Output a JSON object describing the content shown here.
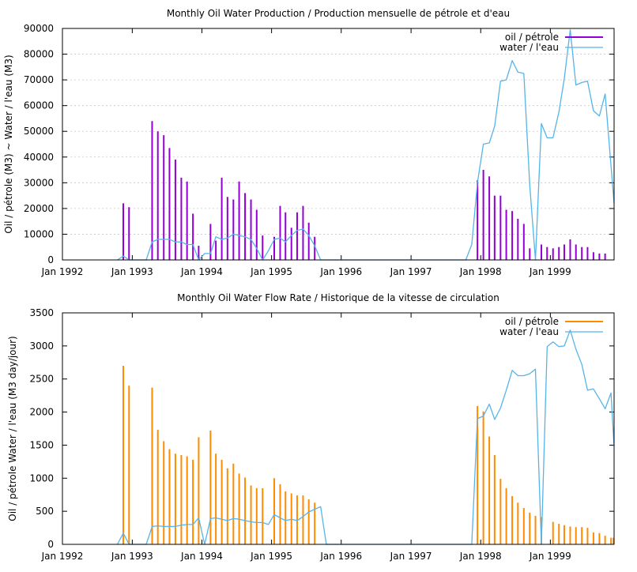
{
  "chart_data": [
    {
      "type": "bar",
      "title": "Monthly Oil  Water Production / Production mensuelle de pétrole et d'eau",
      "xlabel": "",
      "ylabel": "Oil / pétrole (M3) ~  Water / l'eau (M3)",
      "xlim": [
        "1992-01-01",
        "1999-12-01"
      ],
      "ylim": [
        0,
        90000
      ],
      "x_ticks": [
        "Jan 1992",
        "Jan 1993",
        "Jan 1994",
        "Jan 1995",
        "Jan 1996",
        "Jan 1997",
        "Jan 1998",
        "Jan 1999"
      ],
      "y_ticks": [
        "0",
        "10000",
        "20000",
        "30000",
        "40000",
        "50000",
        "60000",
        "70000",
        "80000",
        "90000"
      ],
      "grid": true,
      "legend_position": "top-right",
      "series": [
        {
          "name": "oil / pétrole",
          "kind": "bar",
          "color": "#9400d3",
          "points": [
            [
              "1992-11-15",
              22000
            ],
            [
              "1992-12-15",
              20500
            ],
            [
              "1993-04-15",
              54000
            ],
            [
              "1993-05-15",
              50000
            ],
            [
              "1993-06-15",
              48500
            ],
            [
              "1993-07-15",
              43500
            ],
            [
              "1993-08-15",
              39000
            ],
            [
              "1993-09-15",
              32000
            ],
            [
              "1993-10-15",
              30500
            ],
            [
              "1993-11-15",
              18000
            ],
            [
              "1993-12-15",
              5500
            ],
            [
              "1994-02-15",
              14000
            ],
            [
              "1994-03-15",
              7500
            ],
            [
              "1994-04-15",
              32000
            ],
            [
              "1994-05-15",
              24500
            ],
            [
              "1994-06-15",
              23500
            ],
            [
              "1994-07-15",
              30500
            ],
            [
              "1994-08-15",
              26000
            ],
            [
              "1994-09-15",
              23500
            ],
            [
              "1994-10-15",
              19500
            ],
            [
              "1994-11-15",
              9500
            ],
            [
              "1995-01-15",
              9000
            ],
            [
              "1995-02-15",
              21000
            ],
            [
              "1995-03-15",
              18500
            ],
            [
              "1995-04-15",
              12500
            ],
            [
              "1995-05-15",
              18500
            ],
            [
              "1995-06-15",
              21000
            ],
            [
              "1995-07-15",
              14500
            ],
            [
              "1995-08-15",
              9000
            ],
            [
              "1997-12-15",
              31000
            ],
            [
              "1998-01-15",
              35000
            ],
            [
              "1998-02-15",
              32500
            ],
            [
              "1998-03-15",
              25000
            ],
            [
              "1998-04-15",
              25000
            ],
            [
              "1998-05-15",
              19500
            ],
            [
              "1998-06-15",
              19000
            ],
            [
              "1998-07-15",
              16000
            ],
            [
              "1998-08-15",
              14000
            ],
            [
              "1998-09-15",
              4500
            ],
            [
              "1998-11-15",
              6000
            ],
            [
              "1998-12-15",
              5000
            ],
            [
              "1999-01-15",
              4500
            ],
            [
              "1999-02-15",
              5000
            ],
            [
              "1999-03-15",
              6000
            ],
            [
              "1999-04-15",
              8000
            ],
            [
              "1999-05-15",
              6000
            ],
            [
              "1999-06-15",
              5000
            ],
            [
              "1999-07-15",
              5000
            ],
            [
              "1999-08-15",
              3000
            ],
            [
              "1999-09-15",
              2500
            ],
            [
              "1999-10-15",
              2500
            ]
          ]
        },
        {
          "name": "water / l'eau",
          "kind": "line",
          "color": "#56b4e9",
          "points": [
            [
              "1992-10-15",
              0
            ],
            [
              "1992-11-15",
              1500
            ],
            [
              "1992-12-15",
              0
            ],
            [
              "1993-03-15",
              0
            ],
            [
              "1993-04-15",
              7000
            ],
            [
              "1993-05-15",
              8000
            ],
            [
              "1993-06-15",
              8000
            ],
            [
              "1993-07-15",
              8000
            ],
            [
              "1993-08-15",
              7000
            ],
            [
              "1993-09-15",
              7000
            ],
            [
              "1993-10-15",
              6000
            ],
            [
              "1993-11-15",
              6000
            ],
            [
              "1993-12-15",
              0
            ],
            [
              "1994-01-15",
              2500
            ],
            [
              "1994-02-15",
              2500
            ],
            [
              "1994-03-15",
              9000
            ],
            [
              "1994-04-15",
              8000
            ],
            [
              "1994-05-15",
              8500
            ],
            [
              "1994-06-15",
              10000
            ],
            [
              "1994-07-15",
              9500
            ],
            [
              "1994-08-15",
              9000
            ],
            [
              "1994-09-15",
              8000
            ],
            [
              "1994-10-15",
              4500
            ],
            [
              "1994-11-15",
              0
            ],
            [
              "1994-12-15",
              3500
            ],
            [
              "1995-01-15",
              8000
            ],
            [
              "1995-02-15",
              8500
            ],
            [
              "1995-03-15",
              7000
            ],
            [
              "1995-04-15",
              9500
            ],
            [
              "1995-05-15",
              11500
            ],
            [
              "1995-06-15",
              12000
            ],
            [
              "1995-07-15",
              9500
            ],
            [
              "1995-08-15",
              5500
            ],
            [
              "1995-09-15",
              0
            ],
            [
              "1997-10-15",
              0
            ],
            [
              "1997-11-15",
              6000
            ],
            [
              "1997-12-15",
              30000
            ],
            [
              "1998-01-15",
              45000
            ],
            [
              "1998-02-15",
              45500
            ],
            [
              "1998-03-15",
              52000
            ],
            [
              "1998-04-15",
              69500
            ],
            [
              "1998-05-15",
              70000
            ],
            [
              "1998-06-15",
              77500
            ],
            [
              "1998-07-15",
              73000
            ],
            [
              "1998-08-15",
              72500
            ],
            [
              "1998-09-15",
              29000
            ],
            [
              "1998-10-15",
              0
            ],
            [
              "1998-11-15",
              53000
            ],
            [
              "1998-12-15",
              47500
            ],
            [
              "1999-01-15",
              47500
            ],
            [
              "1999-02-15",
              57500
            ],
            [
              "1999-03-15",
              70500
            ],
            [
              "1999-04-15",
              89500
            ],
            [
              "1999-05-15",
              68000
            ],
            [
              "1999-06-15",
              69000
            ],
            [
              "1999-07-15",
              69500
            ],
            [
              "1999-08-15",
              58000
            ],
            [
              "1999-09-15",
              56000
            ],
            [
              "1999-10-15",
              64500
            ],
            [
              "1999-12-01",
              22000
            ]
          ]
        }
      ]
    },
    {
      "type": "bar",
      "title": "Monthly Oil  Water Flow Rate / Historique de la vitesse de circulation",
      "xlabel": "",
      "ylabel": "Oil / pétrole  Water / l'eau (M3 day/jour)",
      "xlim": [
        "1992-01-01",
        "1999-12-01"
      ],
      "ylim": [
        0,
        3500
      ],
      "x_ticks": [
        "Jan 1992",
        "Jan 1993",
        "Jan 1994",
        "Jan 1995",
        "Jan 1996",
        "Jan 1997",
        "Jan 1998",
        "Jan 1999"
      ],
      "y_ticks": [
        "0",
        "500",
        "1000",
        "1500",
        "2000",
        "2500",
        "3000",
        "3500"
      ],
      "grid": false,
      "legend_position": "top-right",
      "series": [
        {
          "name": "oil / pétrole",
          "kind": "bar",
          "color": "#ff8c00",
          "points": [
            [
              "1992-11-15",
              2700
            ],
            [
              "1992-12-15",
              2400
            ],
            [
              "1993-04-15",
              2370
            ],
            [
              "1993-05-15",
              1730
            ],
            [
              "1993-06-15",
              1560
            ],
            [
              "1993-07-15",
              1440
            ],
            [
              "1993-08-15",
              1370
            ],
            [
              "1993-09-15",
              1350
            ],
            [
              "1993-10-15",
              1330
            ],
            [
              "1993-11-15",
              1280
            ],
            [
              "1993-12-15",
              1620
            ],
            [
              "1994-02-15",
              1720
            ],
            [
              "1994-03-15",
              1370
            ],
            [
              "1994-04-15",
              1280
            ],
            [
              "1994-05-15",
              1150
            ],
            [
              "1994-06-15",
              1220
            ],
            [
              "1994-07-15",
              1070
            ],
            [
              "1994-08-15",
              1010
            ],
            [
              "1994-09-15",
              890
            ],
            [
              "1994-10-15",
              850
            ],
            [
              "1994-11-15",
              850
            ],
            [
              "1995-01-15",
              1000
            ],
            [
              "1995-02-15",
              910
            ],
            [
              "1995-03-15",
              800
            ],
            [
              "1995-04-15",
              770
            ],
            [
              "1995-05-15",
              740
            ],
            [
              "1995-06-15",
              740
            ],
            [
              "1995-07-15",
              680
            ],
            [
              "1995-08-15",
              630
            ],
            [
              "1997-12-15",
              2090
            ],
            [
              "1998-01-15",
              2010
            ],
            [
              "1998-02-15",
              1630
            ],
            [
              "1998-03-15",
              1350
            ],
            [
              "1998-04-15",
              990
            ],
            [
              "1998-05-15",
              850
            ],
            [
              "1998-06-15",
              730
            ],
            [
              "1998-07-15",
              630
            ],
            [
              "1998-08-15",
              550
            ],
            [
              "1998-09-15",
              480
            ],
            [
              "1998-10-15",
              430
            ],
            [
              "1998-11-15",
              410
            ],
            [
              "1999-01-15",
              340
            ],
            [
              "1999-02-15",
              310
            ],
            [
              "1999-03-15",
              290
            ],
            [
              "1999-04-15",
              270
            ],
            [
              "1999-05-15",
              260
            ],
            [
              "1999-06-15",
              260
            ],
            [
              "1999-07-15",
              250
            ],
            [
              "1999-08-15",
              180
            ],
            [
              "1999-09-15",
              170
            ],
            [
              "1999-10-15",
              130
            ],
            [
              "1999-11-15",
              100
            ],
            [
              "1999-11-28",
              100
            ]
          ]
        },
        {
          "name": "water / l'eau",
          "kind": "line",
          "color": "#56b4e9",
          "points": [
            [
              "1992-10-15",
              0
            ],
            [
              "1992-11-15",
              170
            ],
            [
              "1992-12-15",
              0
            ],
            [
              "1993-03-15",
              0
            ],
            [
              "1993-04-15",
              270
            ],
            [
              "1993-05-15",
              280
            ],
            [
              "1993-06-15",
              270
            ],
            [
              "1993-07-15",
              270
            ],
            [
              "1993-08-15",
              270
            ],
            [
              "1993-09-15",
              290
            ],
            [
              "1993-10-15",
              300
            ],
            [
              "1993-11-15",
              300
            ],
            [
              "1993-12-15",
              400
            ],
            [
              "1994-01-15",
              0
            ],
            [
              "1994-02-15",
              390
            ],
            [
              "1994-03-15",
              400
            ],
            [
              "1994-04-15",
              380
            ],
            [
              "1994-05-15",
              360
            ],
            [
              "1994-06-15",
              390
            ],
            [
              "1994-07-15",
              380
            ],
            [
              "1994-08-15",
              360
            ],
            [
              "1994-09-15",
              340
            ],
            [
              "1994-10-15",
              330
            ],
            [
              "1994-11-15",
              330
            ],
            [
              "1994-12-15",
              300
            ],
            [
              "1995-01-15",
              450
            ],
            [
              "1995-02-15",
              400
            ],
            [
              "1995-03-15",
              360
            ],
            [
              "1995-04-15",
              380
            ],
            [
              "1995-05-15",
              360
            ],
            [
              "1995-06-15",
              420
            ],
            [
              "1995-07-15",
              490
            ],
            [
              "1995-08-15",
              530
            ],
            [
              "1995-09-15",
              570
            ],
            [
              "1995-10-15",
              0
            ],
            [
              "1997-11-15",
              0
            ],
            [
              "1997-12-15",
              1900
            ],
            [
              "1998-01-15",
              1940
            ],
            [
              "1998-02-15",
              2120
            ],
            [
              "1998-03-15",
              1890
            ],
            [
              "1998-04-15",
              2060
            ],
            [
              "1998-05-15",
              2330
            ],
            [
              "1998-06-15",
              2630
            ],
            [
              "1998-07-15",
              2550
            ],
            [
              "1998-08-15",
              2550
            ],
            [
              "1998-09-15",
              2580
            ],
            [
              "1998-10-15",
              2650
            ],
            [
              "1998-11-15",
              0
            ],
            [
              "1998-12-15",
              2990
            ],
            [
              "1999-01-15",
              3060
            ],
            [
              "1999-02-15",
              2990
            ],
            [
              "1999-03-15",
              3000
            ],
            [
              "1999-04-15",
              3240
            ],
            [
              "1999-05-15",
              2950
            ],
            [
              "1999-06-15",
              2720
            ],
            [
              "1999-07-15",
              2330
            ],
            [
              "1999-08-15",
              2350
            ],
            [
              "1999-09-15",
              2200
            ],
            [
              "1999-10-15",
              2050
            ],
            [
              "1999-11-15",
              2290
            ],
            [
              "1999-12-01",
              1480
            ]
          ]
        }
      ]
    }
  ]
}
